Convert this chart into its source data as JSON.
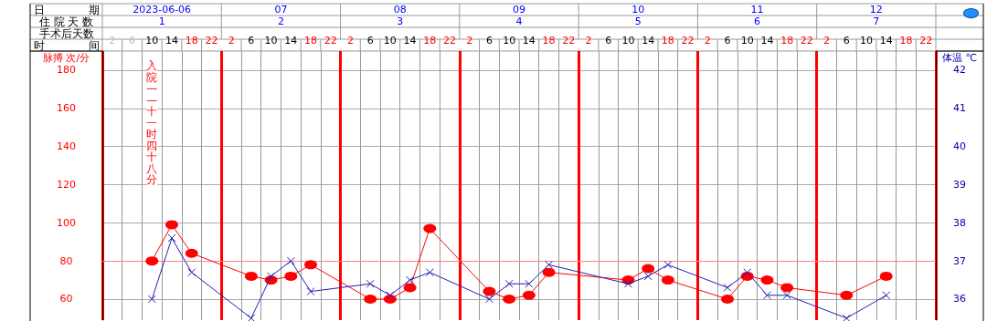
{
  "chart_data": {
    "type": "line",
    "ylabel": "脉搏 次/分",
    "y2label": "体温 ℃",
    "categories": [
      "2",
      "6",
      "10",
      "14",
      "18",
      "22",
      "2",
      "6",
      "10",
      "14",
      "18",
      "22",
      "2",
      "6",
      "10",
      "14",
      "18",
      "22",
      "2",
      "6",
      "10",
      "14",
      "18",
      "22",
      "2",
      "6",
      "10",
      "14",
      "18",
      "22",
      "2",
      "6",
      "10",
      "14",
      "18",
      "22",
      "2",
      "6",
      "10",
      "14",
      "18",
      "22"
    ],
    "series": [
      {
        "color": "#ff0000",
        "marker": "circle",
        "values": [
          null,
          null,
          80,
          99,
          84,
          null,
          null,
          72,
          70,
          72,
          78,
          null,
          null,
          60,
          60,
          66,
          97,
          null,
          null,
          64,
          60,
          62,
          74,
          null,
          null,
          null,
          70,
          76,
          70,
          null,
          null,
          60,
          72,
          70,
          66,
          null,
          null,
          62,
          null,
          72,
          null,
          null
        ]
      },
      {
        "color": "#2020b0",
        "marker": "cross",
        "axis": "y2",
        "values": [
          null,
          null,
          36.0,
          37.6,
          36.7,
          null,
          null,
          35.5,
          36.6,
          37.0,
          36.2,
          null,
          null,
          36.4,
          36.1,
          36.5,
          36.7,
          null,
          null,
          36.0,
          36.4,
          36.4,
          36.9,
          null,
          null,
          null,
          36.4,
          36.6,
          36.9,
          null,
          null,
          36.3,
          36.7,
          36.1,
          36.1,
          null,
          null,
          35.5,
          null,
          36.1,
          null,
          null
        ]
      }
    ],
    "ylim": [
      49,
      190
    ],
    "yticks": [
      60,
      80,
      100,
      120,
      140,
      160,
      180
    ],
    "y2lim": [
      35.45,
      42.5
    ],
    "y2ticks": [
      36,
      37,
      38,
      39,
      40,
      41,
      42
    ],
    "ref_lines": [
      {
        "axis": "y",
        "value": 80,
        "color": "#ff8080"
      }
    ],
    "grid": true,
    "annotations": [
      "日　　　　期",
      "2023-06-06",
      "07",
      "08",
      "09",
      "10",
      "11",
      "12",
      "住 院 天 数",
      "1",
      "2",
      "3",
      "4",
      "5",
      "6",
      "7",
      "手术后天数",
      "时　　　　间",
      "入院——十一时四十八分"
    ]
  }
}
